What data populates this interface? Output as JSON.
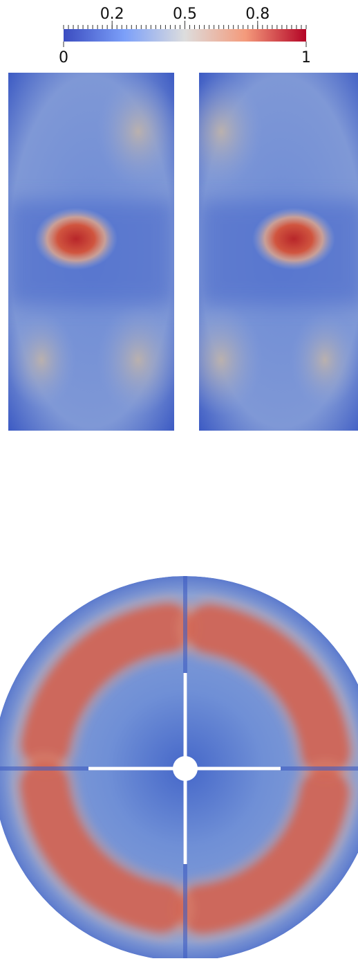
{
  "colorbar": {
    "lim": [
      0,
      1
    ],
    "ticks": [
      0.2,
      0.5,
      0.8
    ]
  }
}
